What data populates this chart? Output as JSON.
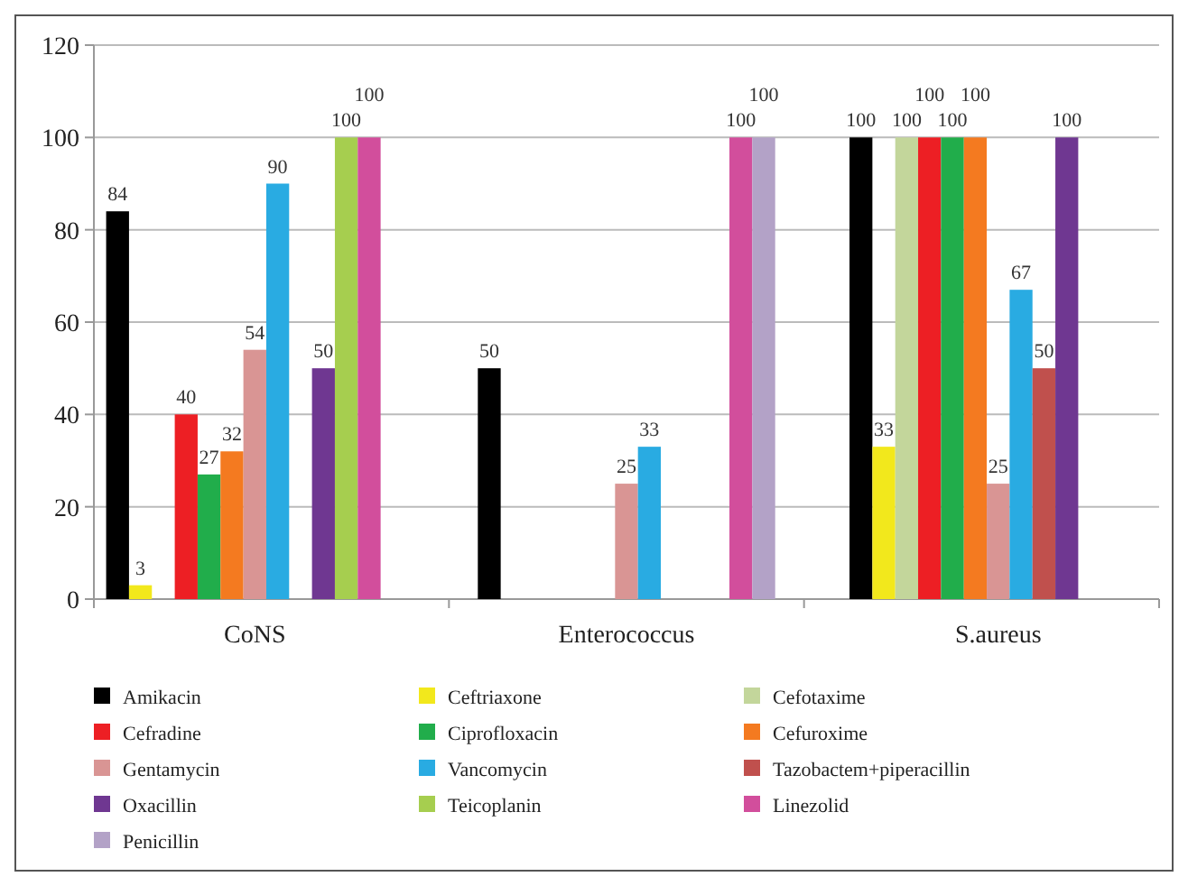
{
  "chart_data": {
    "type": "bar",
    "categories": [
      "CoNS",
      "Enterococcus",
      "S.aureus"
    ],
    "series": [
      {
        "name": "Amikacin",
        "color": "#000000",
        "values": [
          84,
          50,
          100
        ]
      },
      {
        "name": "Ceftriaxone",
        "color": "#f2e81c",
        "values": [
          3,
          null,
          33
        ]
      },
      {
        "name": "Cefotaxime",
        "color": "#c3d69b",
        "values": [
          null,
          null,
          100
        ]
      },
      {
        "name": "Cefradine",
        "color": "#ed1f24",
        "values": [
          40,
          null,
          100
        ]
      },
      {
        "name": "Ciprofloxacin",
        "color": "#21ad4b",
        "values": [
          27,
          null,
          100
        ]
      },
      {
        "name": "Cefuroxime",
        "color": "#f47a20",
        "values": [
          32,
          null,
          100
        ]
      },
      {
        "name": "Gentamycin",
        "color": "#d99594",
        "values": [
          54,
          25,
          25
        ]
      },
      {
        "name": "Vancomycin",
        "color": "#29abe2",
        "values": [
          90,
          33,
          67
        ]
      },
      {
        "name": "Tazobactem+piperacillin",
        "color": "#c0504d",
        "values": [
          null,
          null,
          50
        ]
      },
      {
        "name": "Oxacillin",
        "color": "#6f3791",
        "values": [
          50,
          null,
          100
        ]
      },
      {
        "name": "Teicoplanin",
        "color": "#a6ce4f",
        "values": [
          100,
          null,
          null
        ]
      },
      {
        "name": "Linezolid",
        "color": "#d24e9c",
        "values": [
          100,
          100,
          null
        ]
      },
      {
        "name": "Penicillin",
        "color": "#b3a2c7",
        "values": [
          null,
          100,
          null
        ]
      }
    ],
    "ylim": [
      0,
      120
    ],
    "yticks": [
      0,
      20,
      40,
      60,
      80,
      100,
      120
    ],
    "grid": "y",
    "legend": "bottom",
    "data_labels": true
  }
}
